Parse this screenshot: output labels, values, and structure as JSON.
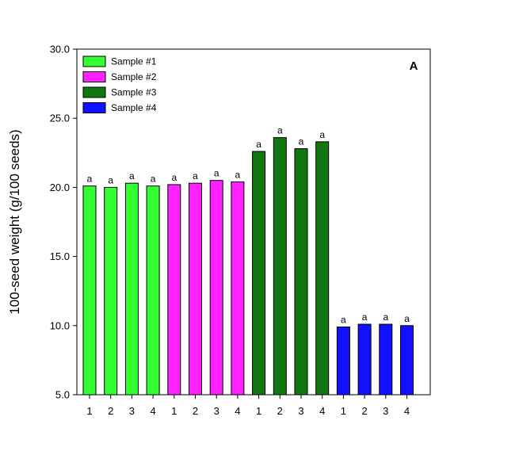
{
  "chart_data": {
    "type": "bar",
    "panel_label": "A",
    "ylabel": "100-seed weight (g/100 seeds)",
    "xlabel": "",
    "ylim": [
      5.0,
      30.0
    ],
    "yticks": [
      "5.0",
      "10.0",
      "15.0",
      "20.0",
      "25.0",
      "30.0"
    ],
    "grid": false,
    "legend_position": "top-left",
    "categories": [
      "1",
      "2",
      "3",
      "4"
    ],
    "series": [
      {
        "name": "Sample #1",
        "color": "#33ff33",
        "values": [
          20.1,
          20.0,
          20.3,
          20.1
        ],
        "labels": [
          "a",
          "a",
          "a",
          "a"
        ]
      },
      {
        "name": "Sample #2",
        "color": "#ff22ff",
        "values": [
          20.2,
          20.3,
          20.5,
          20.4
        ],
        "labels": [
          "a",
          "a",
          "a",
          "a"
        ]
      },
      {
        "name": "Sample #3",
        "color": "#117711",
        "values": [
          22.6,
          23.6,
          22.8,
          23.3
        ],
        "labels": [
          "a",
          "a",
          "a",
          "a"
        ]
      },
      {
        "name": "Sample #4",
        "color": "#1111ff",
        "values": [
          9.9,
          10.1,
          10.1,
          10.0
        ],
        "labels": [
          "a",
          "a",
          "a",
          "a"
        ]
      }
    ]
  }
}
